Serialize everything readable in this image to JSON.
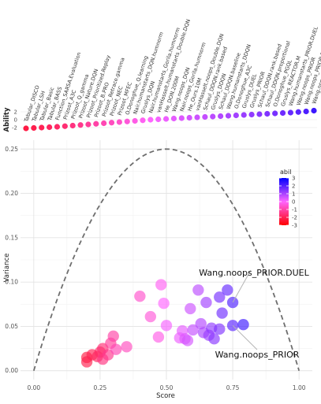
{
  "chart_data": [
    {
      "type": "scatter",
      "panel": "ability-strip",
      "ylabel": "Ability",
      "yticks": [
        2,
        0,
        -2
      ],
      "ylim": [
        -2.8,
        2.8
      ],
      "agents": [
        {
          "name": "Tabular_DISCO",
          "ability": -2.2
        },
        {
          "name": "Tabular_LSH",
          "ability": -2.1
        },
        {
          "name": "Tabular_Basic",
          "ability": -2.0
        },
        {
          "name": "Tabular_BASS",
          "ability": -1.9
        },
        {
          "name": "Function_SARSA.Evaluation",
          "ability": -1.8
        },
        {
          "name": "Prizoot_A3C",
          "ability": -1.65
        },
        {
          "name": "Prizoot_Q_gamma",
          "ability": -1.5
        },
        {
          "name": "Prizoot_Nature.DQN",
          "ability": -1.35
        },
        {
          "name": "Prizoot_Prioritized.Replay",
          "ability": -1.2
        },
        {
          "name": "Prizoot_B.PRO",
          "ability": -1.05
        },
        {
          "name": "Prizoot_Retrace.gamma",
          "ability": -0.9
        },
        {
          "name": "Prizoot_NEC",
          "ability": -0.75
        },
        {
          "name": "Prizoot_MFEC",
          "ability": -0.6
        },
        {
          "name": "O.Donoghue_Q.learning",
          "ability": -0.45
        },
        {
          "name": "Nair.humanstarts_DQN.humnorm",
          "ability": -0.3
        },
        {
          "name": "Gruslys_DQN",
          "ability": -0.15
        },
        {
          "name": "Nair.humanstarts_Gorila.humnorm",
          "ability": 0.0
        },
        {
          "name": "vanHasselt.humanstarts_Double.DQN",
          "ability": 0.1
        },
        {
          "name": "He_DON.200M",
          "ability": 0.2
        },
        {
          "name": "Wang.noops_DQN",
          "ability": 0.3
        },
        {
          "name": "Nair.noops_Gorila.humnorm",
          "ability": 0.4
        },
        {
          "name": "He_Ours.10M",
          "ability": 0.5
        },
        {
          "name": "vanHasselt.noops_Double.DQN",
          "ability": 0.6
        },
        {
          "name": "Schaul_DDQN.rank.based",
          "ability": 0.7
        },
        {
          "name": "Gruslys_DDQN",
          "ability": 0.8
        },
        {
          "name": "Schaul_DDQN.baseline",
          "ability": 0.9
        },
        {
          "name": "Wang.humanstarts_DDQN",
          "ability": 1.0
        },
        {
          "name": "O.Donoghue_A3C",
          "ability": 1.1
        },
        {
          "name": "Gruslys_DUEL",
          "ability": 1.2
        },
        {
          "name": "Gruslys_PRIOR",
          "ability": 1.3
        },
        {
          "name": "Schaul_DDQN.rank.based",
          "ability": 1.4
        },
        {
          "name": "Schaul_DDQN.proportional",
          "ability": 1.5
        },
        {
          "name": "O.Donoghue_PGQL",
          "ability": 1.6
        },
        {
          "name": "Gruslys_REACTOR.M",
          "ability": 1.7
        },
        {
          "name": "Wang.humanstarts_PRIOR.DUEL",
          "ability": 1.8
        },
        {
          "name": "Wang.noops_PRIOR",
          "ability": 1.95
        },
        {
          "name": "Wang.noops_PRIOR.DUEL",
          "ability": 2.1
        },
        {
          "name": "Wang.noops_DUEL",
          "ability": 2.3
        }
      ]
    },
    {
      "type": "scatter",
      "panel": "main",
      "xlabel": "Score",
      "ylabel": "Variance",
      "xlim": [
        -0.05,
        1.05
      ],
      "ylim": [
        -0.01,
        0.26
      ],
      "xticks": [
        0.0,
        0.25,
        0.5,
        0.75,
        1.0
      ],
      "xtick_labels": [
        "0.00",
        "0.25",
        "0.50",
        "0.75",
        "1.00"
      ],
      "yticks": [
        0.0,
        0.05,
        0.1,
        0.15,
        0.2,
        0.25
      ],
      "ytick_labels": [
        "0.00",
        "0.05",
        "0.10",
        "0.15",
        "0.20",
        "0.25"
      ],
      "grid": true,
      "reference_curve": "p(1-p), dashed grey",
      "points": [
        {
          "x": 0.2,
          "y": 0.015,
          "abil": -2.2
        },
        {
          "x": 0.2,
          "y": 0.01,
          "abil": -2.1
        },
        {
          "x": 0.22,
          "y": 0.018,
          "abil": -2.0
        },
        {
          "x": 0.24,
          "y": 0.016,
          "abil": -1.9
        },
        {
          "x": 0.25,
          "y": 0.021,
          "abil": -1.8
        },
        {
          "x": 0.26,
          "y": 0.025,
          "abil": -1.65
        },
        {
          "x": 0.26,
          "y": 0.013,
          "abil": -1.5
        },
        {
          "x": 0.28,
          "y": 0.018,
          "abil": -1.35
        },
        {
          "x": 0.29,
          "y": 0.031,
          "abil": -1.2
        },
        {
          "x": 0.3,
          "y": 0.039,
          "abil": -1.05
        },
        {
          "x": 0.31,
          "y": 0.024,
          "abil": -0.9
        },
        {
          "x": 0.35,
          "y": 0.027,
          "abil": -0.75
        },
        {
          "x": 0.4,
          "y": 0.084,
          "abil": -0.6
        },
        {
          "x": 0.44,
          "y": 0.061,
          "abil": -0.45
        },
        {
          "x": 0.47,
          "y": 0.038,
          "abil": -0.3
        },
        {
          "x": 0.48,
          "y": 0.097,
          "abil": -0.15
        },
        {
          "x": 0.49,
          "y": 0.076,
          "abil": 0.0
        },
        {
          "x": 0.5,
          "y": 0.051,
          "abil": 0.1
        },
        {
          "x": 0.55,
          "y": 0.037,
          "abil": 0.2
        },
        {
          "x": 0.56,
          "y": 0.045,
          "abil": 0.3
        },
        {
          "x": 0.57,
          "y": 0.036,
          "abil": 0.4
        },
        {
          "x": 0.58,
          "y": 0.034,
          "abil": 0.5
        },
        {
          "x": 0.59,
          "y": 0.07,
          "abil": 0.6
        },
        {
          "x": 0.6,
          "y": 0.046,
          "abil": 0.7
        },
        {
          "x": 0.62,
          "y": 0.091,
          "abil": 0.8
        },
        {
          "x": 0.63,
          "y": 0.053,
          "abil": 0.9
        },
        {
          "x": 0.64,
          "y": 0.043,
          "abil": 1.0
        },
        {
          "x": 0.65,
          "y": 0.077,
          "abil": 1.1
        },
        {
          "x": 0.66,
          "y": 0.04,
          "abil": 1.2
        },
        {
          "x": 0.67,
          "y": 0.048,
          "abil": 1.3
        },
        {
          "x": 0.68,
          "y": 0.036,
          "abil": 1.4
        },
        {
          "x": 0.7,
          "y": 0.047,
          "abil": 1.5
        },
        {
          "x": 0.7,
          "y": 0.083,
          "abil": 1.6
        },
        {
          "x": 0.71,
          "y": 0.065,
          "abil": 1.7
        },
        {
          "x": 0.73,
          "y": 0.091,
          "abil": 1.8
        },
        {
          "x": 0.75,
          "y": 0.051,
          "abil": 1.95
        },
        {
          "x": 0.75,
          "y": 0.077,
          "abil": 2.1
        },
        {
          "x": 0.79,
          "y": 0.052,
          "abil": 2.3
        }
      ],
      "annotations": [
        {
          "label": "Wang.noops_PRIOR.DUEL",
          "x": 0.75,
          "y": 0.077
        },
        {
          "label": "Wang.noops_PRIOR",
          "x": 0.75,
          "y": 0.051
        }
      ],
      "legend": {
        "title": "abil",
        "placement": "right",
        "ticks": [
          3,
          2,
          1,
          0,
          -1,
          -2,
          -3
        ],
        "range": [
          -3,
          3
        ],
        "colors": {
          "low": "#ff0000",
          "mid": "#ff66ff",
          "high": "#0000ff"
        }
      }
    }
  ]
}
